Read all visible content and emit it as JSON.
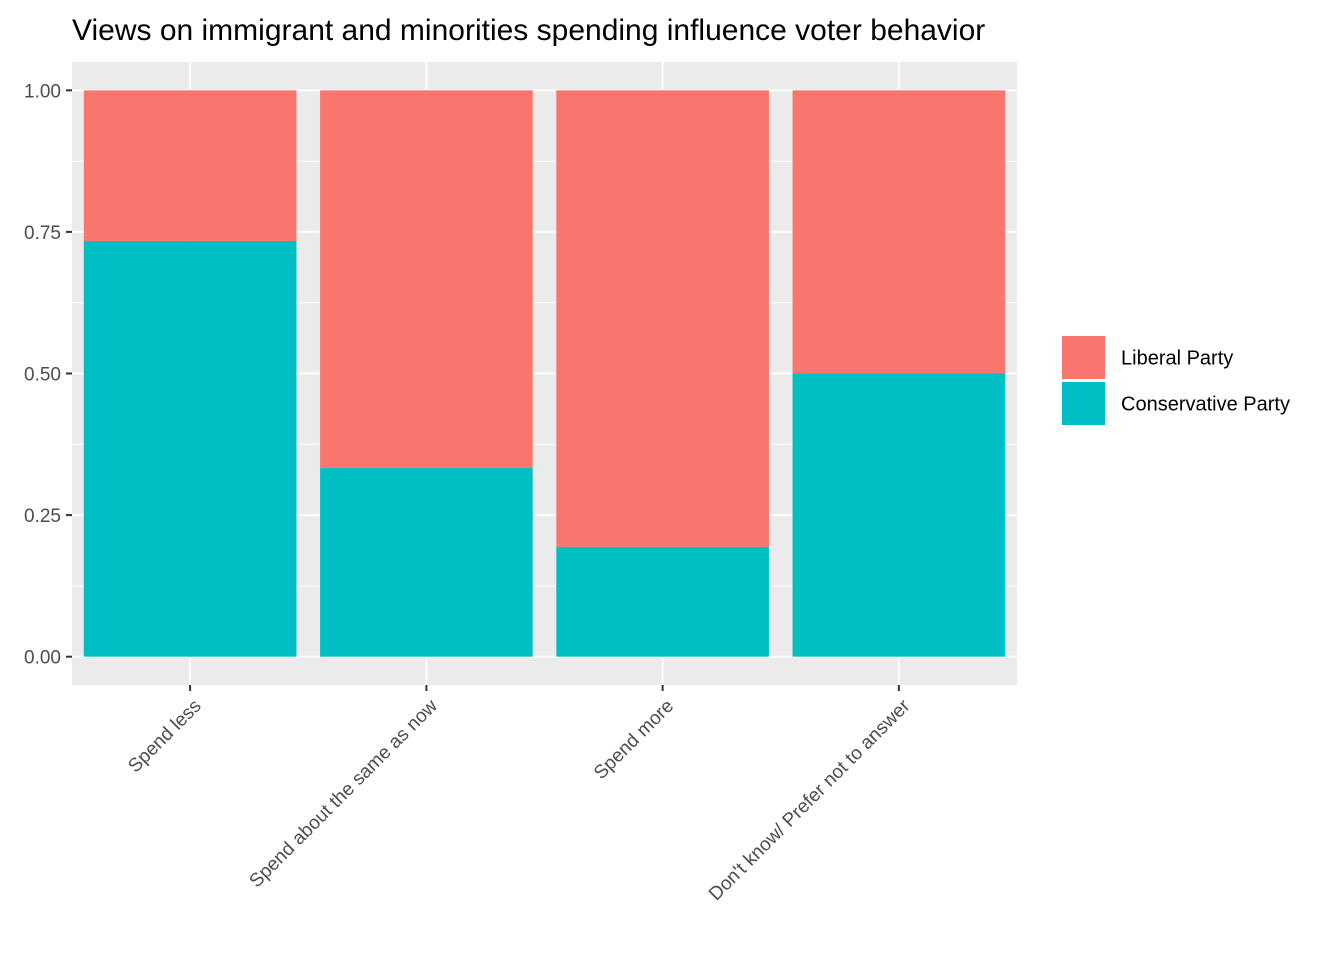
{
  "chart_data": {
    "type": "bar",
    "stacked": true,
    "title": "Views on immigrant and minorities spending influence voter behavior",
    "xlabel": "",
    "ylabel": "",
    "categories": [
      "Spend less",
      "Spend about the same as now",
      "Spend more",
      "Don't know/ Prefer not to answer"
    ],
    "series": [
      {
        "name": "Conservative Party",
        "color": "#00BFC4",
        "values": [
          0.734,
          0.333,
          0.194,
          0.5
        ]
      },
      {
        "name": "Liberal Party",
        "color": "#F8766D",
        "values": [
          0.266,
          0.667,
          0.806,
          0.5
        ]
      }
    ],
    "legend_order": [
      "Liberal Party",
      "Conservative Party"
    ],
    "ylim": [
      0,
      1
    ],
    "yticks": [
      "0.00",
      "0.25",
      "0.50",
      "0.75",
      "1.00"
    ],
    "grid": true,
    "legend_position": "right",
    "panel_background": "#EBEBEB"
  }
}
